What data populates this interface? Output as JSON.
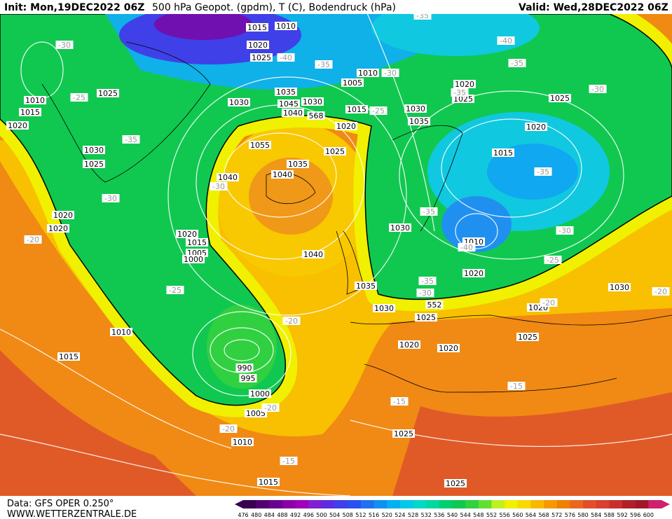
{
  "header": {
    "init": "Init: Mon,19DEC2022 06Z",
    "title": "500 hPa Geopot. (gpdm), T (C), Bodendruck (hPa)",
    "valid": "Valid: Wed,28DEC2022 06Z"
  },
  "footer": {
    "data": "Data: GFS OPER 0.250°",
    "site": "WWW.WETTERZENTRALE.DE"
  },
  "map": {
    "labels": [
      "1015",
      "1010",
      "1020",
      "1025",
      "1010",
      "1005",
      "1020",
      "1025",
      "1025",
      "1010",
      "1015",
      "1020",
      "1035",
      "1030",
      "1045",
      "1030",
      "1040",
      "1015",
      "1030",
      "1035",
      "1020",
      "1025",
      "1020",
      "1015",
      "1030",
      "1025",
      "1055",
      "1025",
      "1035",
      "1040",
      "1040",
      "1020",
      "1020",
      "1030",
      "1020",
      "1015",
      "1005",
      "1000",
      "1040",
      "1010",
      "1020",
      "1035",
      "1030",
      "1030",
      "1025",
      "1020",
      "1010",
      "1025",
      "1020",
      "1020",
      "1015",
      "990",
      "995",
      "1000",
      "1005",
      "1010",
      "1025",
      "1015",
      "1025",
      "-30",
      "-25",
      "-35",
      "-30",
      "-30",
      "-20",
      "-25",
      "-20",
      "-20",
      "-20",
      "-15",
      "-15",
      "-15",
      "-40",
      "-35",
      "-30",
      "-25",
      "-35",
      "-40",
      "-35",
      "-30",
      "-35",
      "-35",
      "-35",
      "-40",
      "-30",
      "-25",
      "-35",
      "-30",
      "-20",
      "-20",
      "568",
      "552"
    ]
  },
  "legend": {
    "values": [
      476,
      480,
      484,
      488,
      492,
      496,
      500,
      504,
      508,
      512,
      516,
      520,
      524,
      528,
      532,
      536,
      540,
      544,
      548,
      552,
      556,
      560,
      564,
      568,
      572,
      576,
      580,
      584,
      588,
      592,
      596,
      600
    ],
    "colors": [
      "#3a0050",
      "#520070",
      "#6a0090",
      "#8a00a8",
      "#a000b8",
      "#8020d0",
      "#5a2ee0",
      "#4040e8",
      "#2a50f0",
      "#2070f0",
      "#1090f0",
      "#00b0f0",
      "#00c8e8",
      "#00d8c8",
      "#00d8a0",
      "#00d070",
      "#10c850",
      "#30d040",
      "#60e030",
      "#c0f020",
      "#f0f000",
      "#f8d800",
      "#f8b800",
      "#f89800",
      "#f08000",
      "#e86820",
      "#e05028",
      "#d84030",
      "#c83030",
      "#b02028",
      "#a01828",
      "#d02070"
    ]
  }
}
